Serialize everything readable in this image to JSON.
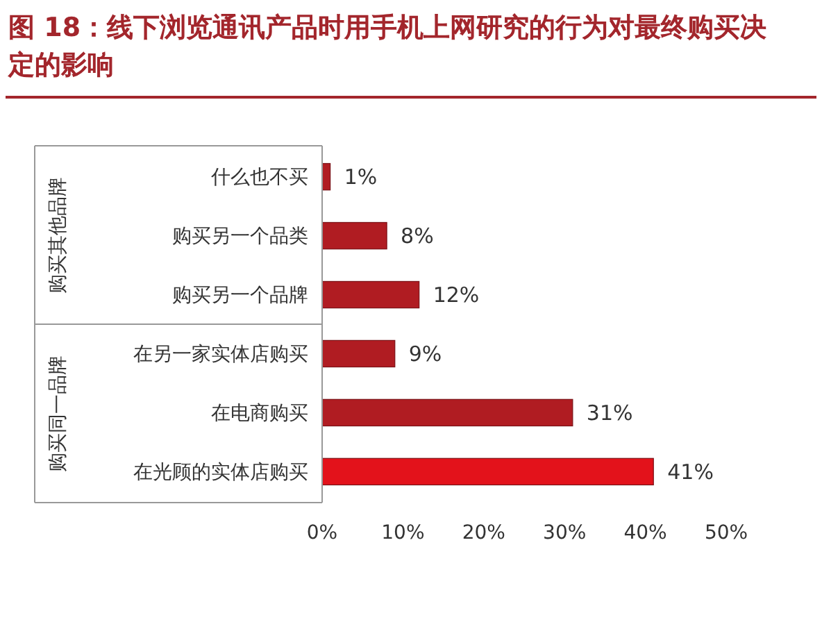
{
  "chart_data": {
    "type": "bar",
    "orientation": "horizontal",
    "title": "图 18：线下浏览通讯产品时用手机上网研究的行为对最终购买决定的影响",
    "categories": [
      "什么也不买",
      "购买另一个品类",
      "购买另一个品牌",
      "在另一家实体店购买",
      "在电商购买",
      "在光顾的实体店购买"
    ],
    "values": [
      1,
      8,
      12,
      9,
      31,
      41
    ],
    "colors": [
      "#b01c22",
      "#b01c22",
      "#b01c22",
      "#b01c22",
      "#b01c22",
      "#e3121b"
    ],
    "value_labels": [
      "1%",
      "8%",
      "12%",
      "9%",
      "31%",
      "41%"
    ],
    "xlim": [
      0,
      50
    ],
    "xticks": [
      {
        "value": 0,
        "label": "0%"
      },
      {
        "value": 10,
        "label": "10%"
      },
      {
        "value": 20,
        "label": "20%"
      },
      {
        "value": 30,
        "label": "30%"
      },
      {
        "value": 40,
        "label": "40%"
      },
      {
        "value": 50,
        "label": "50%"
      }
    ],
    "annotations": [
      "购买其他品牌",
      "购买同一品牌"
    ],
    "grid": false
  }
}
